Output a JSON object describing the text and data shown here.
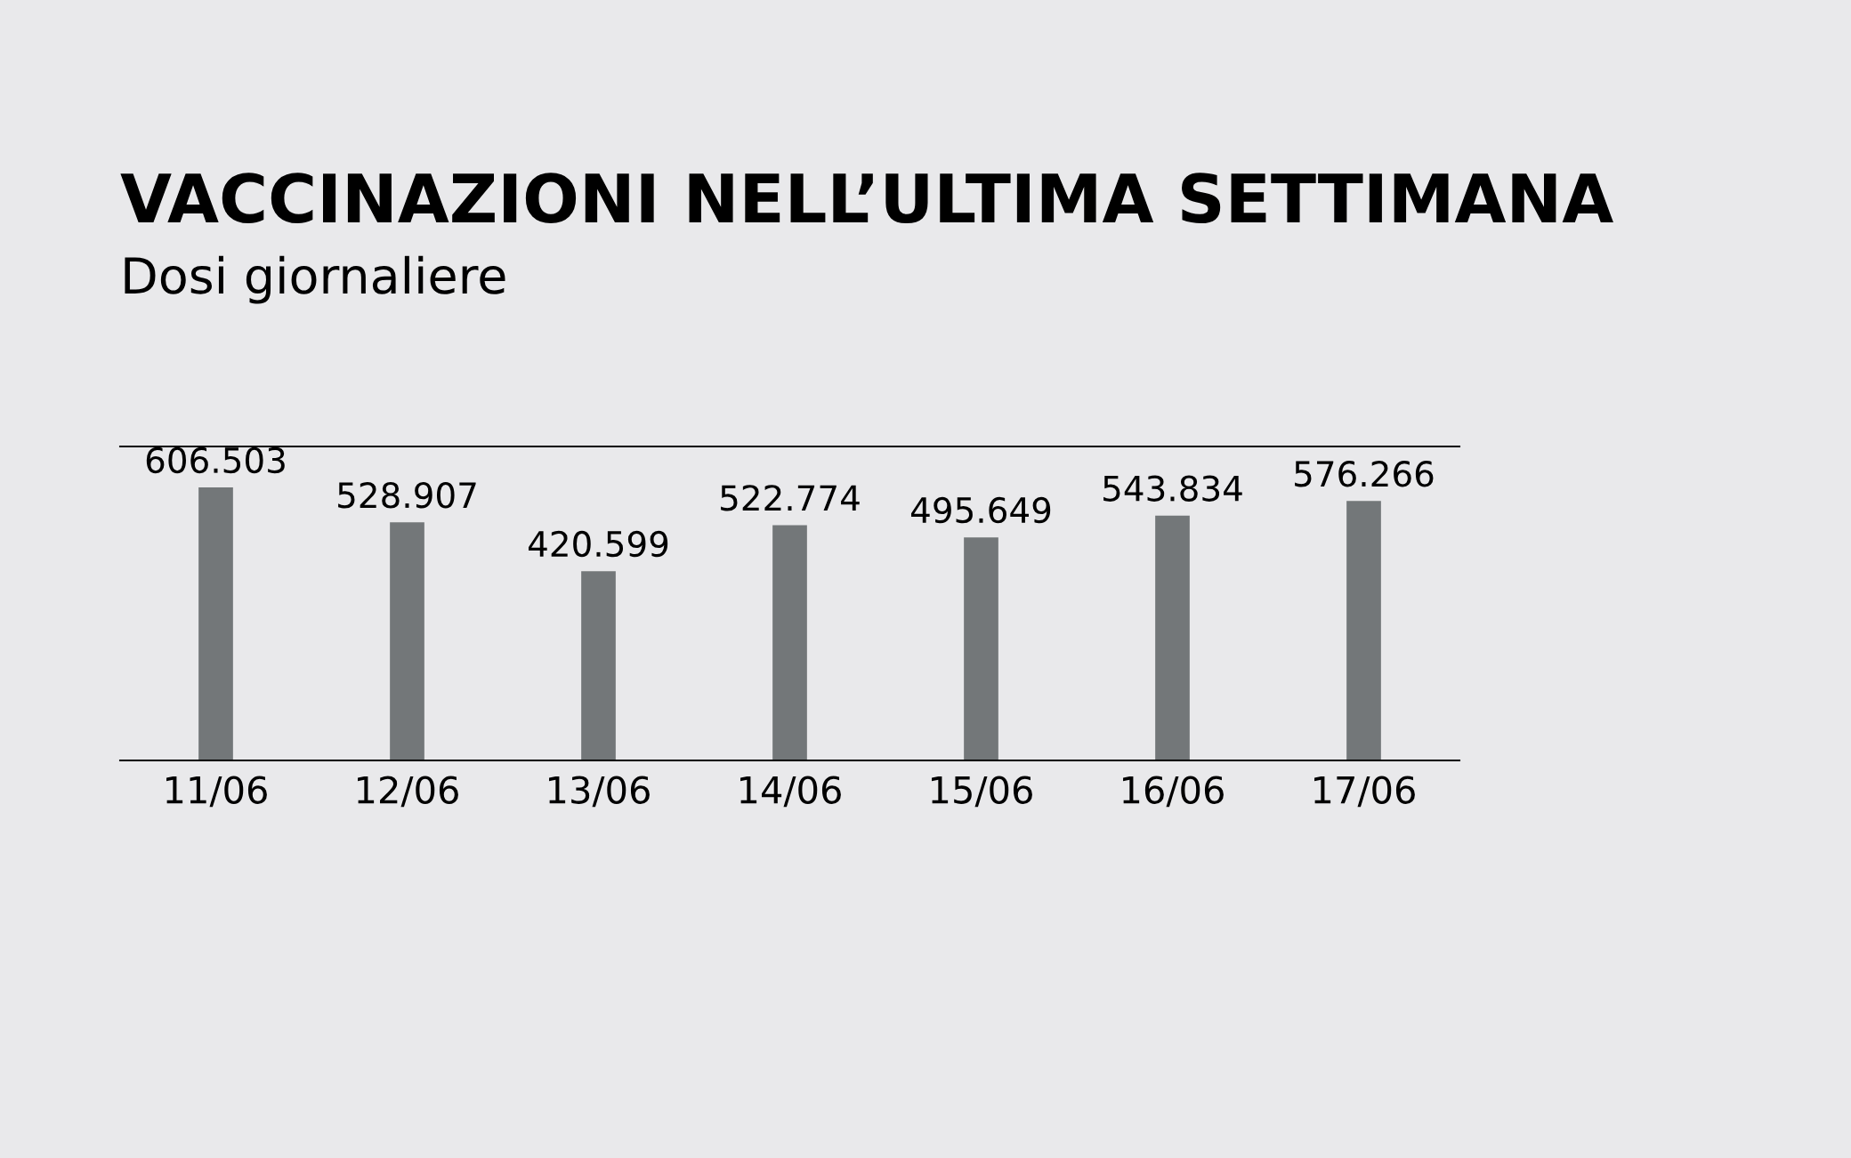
{
  "chart_data": {
    "type": "bar",
    "title": "VACCINAZIONI NELL’ULTIMA SETTIMANA",
    "subtitle": "Dosi giornaliere",
    "categories": [
      "11/06",
      "12/06",
      "13/06",
      "14/06",
      "15/06",
      "16/06",
      "17/06"
    ],
    "values": [
      606503,
      528907,
      420599,
      522774,
      495649,
      543834,
      576266
    ],
    "value_labels": [
      "606.503",
      "528.907",
      "420.599",
      "522.774",
      "495.649",
      "543.834",
      "576.266"
    ],
    "color": "#737779",
    "grid": false,
    "legend": false
  }
}
